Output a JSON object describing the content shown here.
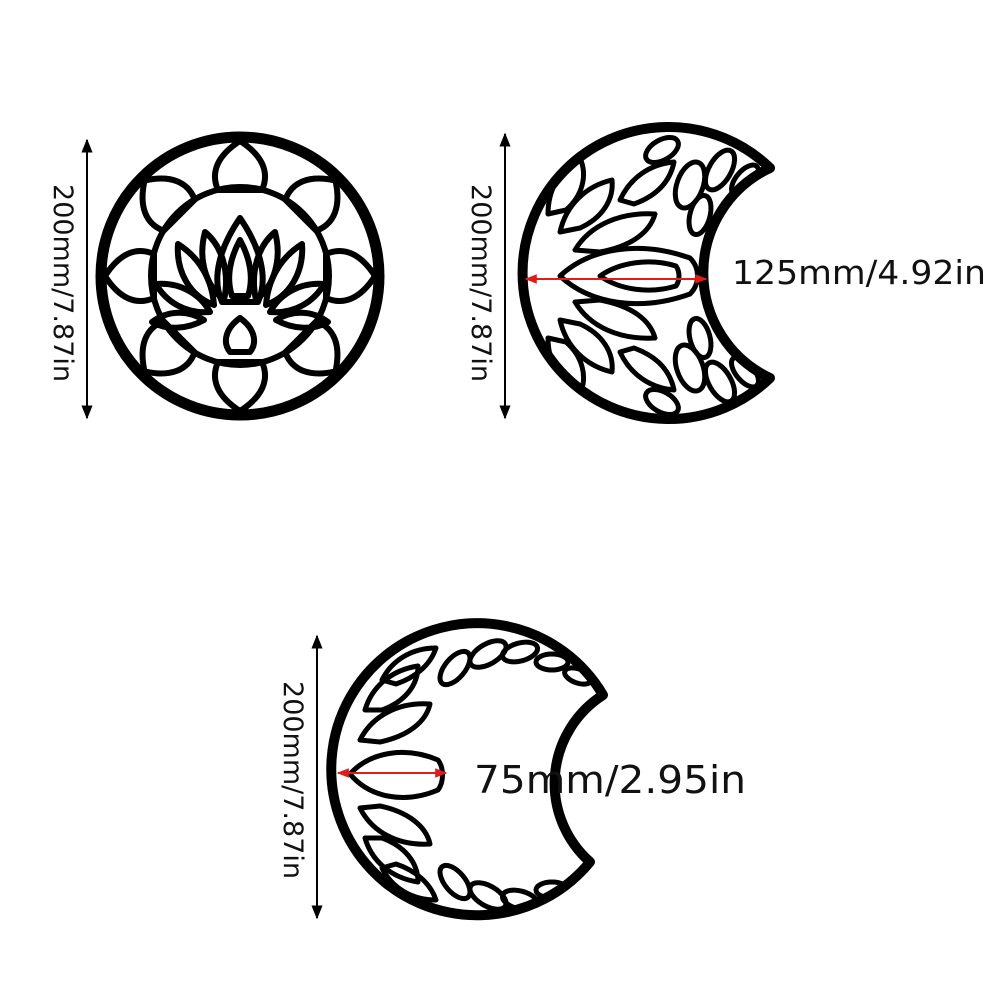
{
  "items": [
    {
      "shape": "lotus-circle",
      "height_label": "200mm/7.87in"
    },
    {
      "shape": "crescent-moon-wide",
      "height_label": "200mm/7.87in",
      "width_label": "125mm/4.92in"
    },
    {
      "shape": "crescent-moon-narrow",
      "height_label": "200mm/7.87in",
      "width_label": "75mm/2.95in"
    }
  ],
  "colors": {
    "outline": "#000000",
    "arrow_height": "#000000",
    "arrow_width": "#e01b1b"
  }
}
